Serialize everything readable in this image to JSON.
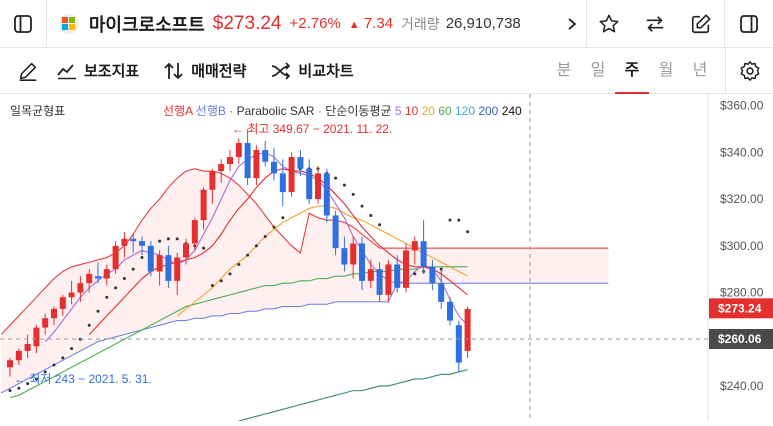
{
  "header": {
    "company_name": "마이크로소프트",
    "price": "$273.24",
    "change_pct": "+2.76%",
    "change_abs": "7.34",
    "volume_label": "거래량",
    "volume": "26,910,738"
  },
  "toolbar": {
    "indicators_label": "보조지표",
    "strategy_label": "매매전략",
    "compare_label": "비교차트",
    "periods": [
      "분",
      "일",
      "주",
      "월",
      "년"
    ],
    "active_period": "주"
  },
  "legend": {
    "ichimoku": "일목균형표",
    "leading_a": "선행A",
    "leading_b": "선행B",
    "parabolic": "Parabolic SAR",
    "sma_label": "단순이동평균",
    "sma_periods": [
      "5",
      "10",
      "20",
      "60",
      "120",
      "200",
      "240"
    ],
    "sma_colors": [
      "#b06ad8",
      "#e52e2e",
      "#f0a22e",
      "#4caf50",
      "#3aa8d8",
      "#2f5fd8",
      "#111111"
    ]
  },
  "annotations": {
    "high": "← 최고 349.67 − 2021. 11. 22.",
    "low": "← 최저 243 − 2021. 5. 31."
  },
  "axis": {
    "ticks": [
      "$360.00",
      "$340.00",
      "$320.00",
      "$300.00",
      "$280.00",
      "$240.00"
    ],
    "current_price_label": "$273.24",
    "crosshair_label": "$260.06"
  },
  "colors": {
    "up": "#e52e2e",
    "down": "#2f6fe0",
    "accent": "#e52e2e"
  },
  "chart_data": {
    "type": "candlestick",
    "y_unit": "USD",
    "ylim": [
      225,
      365
    ],
    "candles": [
      [
        248,
        252,
        244,
        251
      ],
      [
        251,
        256,
        249,
        255
      ],
      [
        255,
        262,
        252,
        258
      ],
      [
        257,
        266,
        254,
        265
      ],
      [
        265,
        271,
        262,
        269
      ],
      [
        269,
        274,
        266,
        273
      ],
      [
        273,
        279,
        270,
        278
      ],
      [
        278,
        285,
        275,
        280
      ],
      [
        280,
        287,
        276,
        284
      ],
      [
        284,
        290,
        280,
        288
      ],
      [
        287,
        293,
        284,
        286
      ],
      [
        286,
        292,
        283,
        290
      ],
      [
        290,
        302,
        288,
        300
      ],
      [
        300,
        306,
        295,
        303
      ],
      [
        303,
        305,
        297,
        302
      ],
      [
        302,
        304,
        296,
        300
      ],
      [
        300,
        302,
        287,
        289
      ],
      [
        289,
        298,
        283,
        296
      ],
      [
        296,
        300,
        282,
        285
      ],
      [
        285,
        297,
        279,
        295
      ],
      [
        295,
        303,
        292,
        301
      ],
      [
        301,
        312,
        298,
        311
      ],
      [
        311,
        325,
        307,
        324
      ],
      [
        324,
        333,
        318,
        332
      ],
      [
        332,
        337,
        327,
        335
      ],
      [
        335,
        341,
        332,
        338
      ],
      [
        338,
        346,
        335,
        344
      ],
      [
        344,
        350,
        326,
        329
      ],
      [
        329,
        343,
        326,
        341
      ],
      [
        341,
        345,
        334,
        336
      ],
      [
        336,
        342,
        328,
        331
      ],
      [
        331,
        337,
        317,
        323
      ],
      [
        323,
        340,
        321,
        338
      ],
      [
        338,
        341,
        330,
        333
      ],
      [
        333,
        337,
        318,
        320
      ],
      [
        320,
        334,
        318,
        331
      ],
      [
        331,
        333,
        310,
        313
      ],
      [
        313,
        315,
        296,
        299
      ],
      [
        299,
        304,
        289,
        292
      ],
      [
        292,
        304,
        286,
        301
      ],
      [
        301,
        304,
        281,
        285
      ],
      [
        285,
        294,
        282,
        290
      ],
      [
        290,
        293,
        276,
        279
      ],
      [
        279,
        294,
        276,
        292
      ],
      [
        292,
        296,
        280,
        282
      ],
      [
        282,
        301,
        280,
        298
      ],
      [
        298,
        304,
        292,
        302
      ],
      [
        302,
        311,
        288,
        291
      ],
      [
        291,
        294,
        281,
        284
      ],
      [
        284,
        290,
        273,
        276
      ],
      [
        276,
        278,
        266,
        268
      ],
      [
        266,
        268,
        246,
        250
      ],
      [
        255,
        274,
        252,
        273
      ]
    ],
    "sma_5": [
      null,
      null,
      null,
      null,
      259,
      263,
      268,
      273,
      278,
      282,
      285,
      288,
      290,
      294,
      296,
      298,
      297,
      296,
      294,
      292,
      294,
      298,
      305,
      312,
      320,
      328,
      334,
      337,
      339,
      340,
      338,
      334,
      332,
      331,
      330,
      328,
      324,
      318,
      312,
      304,
      298,
      292,
      288,
      285,
      284,
      285,
      289,
      292,
      290,
      285,
      277,
      270,
      266
    ],
    "sma_10": [
      null,
      null,
      null,
      null,
      null,
      null,
      null,
      null,
      null,
      262,
      266,
      270,
      274,
      278,
      282,
      286,
      289,
      291,
      292,
      293,
      294,
      295,
      297,
      300,
      305,
      311,
      316,
      320,
      325,
      329,
      332,
      333,
      332,
      332,
      331,
      329,
      326,
      322,
      318,
      313,
      308,
      304,
      300,
      297,
      294,
      292,
      291,
      291,
      290,
      288,
      285,
      282,
      279
    ],
    "sma_20": [
      null,
      null,
      null,
      null,
      null,
      null,
      null,
      null,
      null,
      null,
      null,
      null,
      null,
      null,
      null,
      null,
      null,
      null,
      null,
      270,
      273,
      276,
      279,
      282,
      286,
      290,
      293,
      296,
      300,
      304,
      307,
      310,
      312,
      314,
      316,
      317,
      317,
      316,
      314,
      312,
      311,
      309,
      307,
      305,
      303,
      301,
      299,
      297,
      295,
      293,
      291,
      289,
      287
    ],
    "sma_60": [
      235,
      236,
      238,
      240,
      242,
      244,
      246,
      248,
      250,
      252,
      254,
      256,
      258,
      260,
      262,
      264,
      266,
      268,
      270,
      272,
      274,
      275,
      276,
      277,
      278,
      279,
      280,
      281,
      282,
      283,
      283,
      284,
      284,
      285,
      285,
      286,
      286,
      287,
      287,
      288,
      288,
      289,
      289,
      289,
      290,
      290,
      290,
      291,
      291,
      291,
      291,
      291,
      291
    ],
    "sma_120": [
      null,
      null,
      null,
      null,
      null,
      null,
      null,
      null,
      null,
      null,
      null,
      null,
      null,
      null,
      null,
      null,
      null,
      null,
      null,
      null,
      null,
      null,
      null,
      null,
      null,
      null,
      225,
      226,
      227,
      228,
      229,
      230,
      231,
      232,
      233,
      234,
      235,
      236,
      237,
      238,
      238,
      239,
      240,
      240,
      241,
      242,
      243,
      243,
      244,
      245,
      245,
      246,
      247
    ],
    "parabolic_sar": [
      238,
      239,
      241,
      243,
      246,
      249,
      252,
      256,
      260,
      266,
      272,
      278,
      282,
      286,
      290,
      295,
      299,
      302,
      303,
      303,
      301,
      300,
      299,
      283,
      285,
      288,
      292,
      296,
      300,
      304,
      308,
      312,
      333,
      333,
      333,
      333,
      331,
      329,
      326,
      322,
      317,
      313,
      309,
      285,
      286,
      287,
      288,
      289,
      290,
      290,
      311,
      311,
      306
    ]
  }
}
